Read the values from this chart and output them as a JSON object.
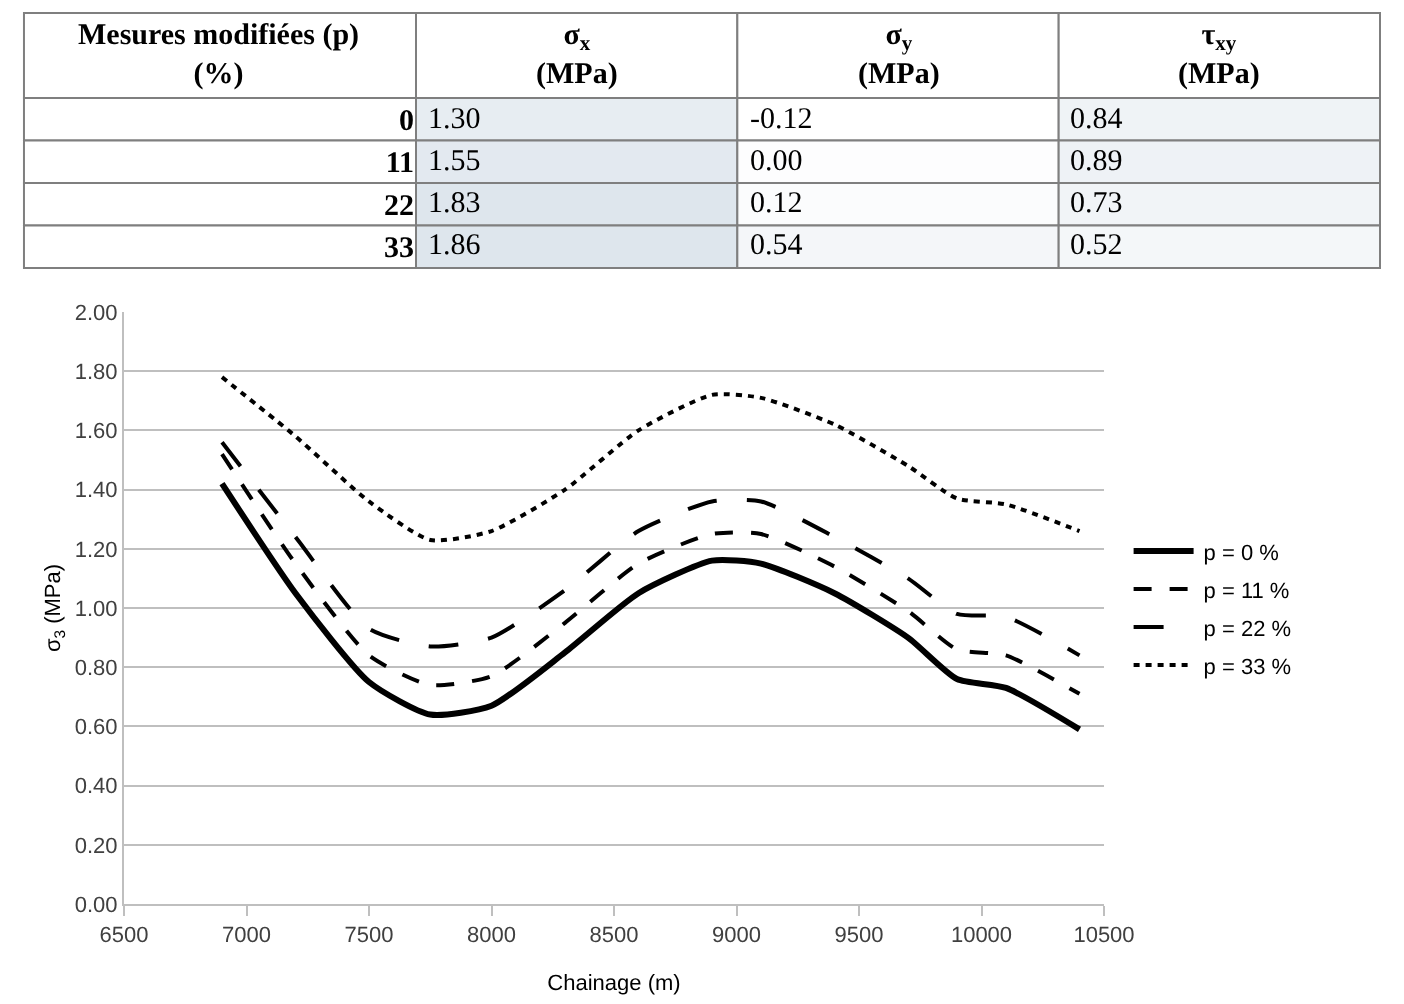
{
  "chart_data": [
    {
      "type": "heatmap",
      "ylabel": "Mesures modifiées (p)\n(%)",
      "categories": [
        "σ$_{x}$\n(MPa)",
        "σ$_{y}$\n(MPa)",
        "τ$_{xy}$\n(MPa)"
      ],
      "y_categories": [
        "0",
        "11",
        "22",
        "33"
      ],
      "cells": [
        [
          1.3,
          -0.12,
          0.84
        ],
        [
          1.55,
          0,
          0.89
        ],
        [
          1.83,
          0.12,
          0.73
        ],
        [
          1.86,
          0.54,
          0.52
        ]
      ],
      "cell_labels": [
        [
          "1.30",
          "-0.12",
          "0.84"
        ],
        [
          "1.55",
          "0.00",
          "0.89"
        ],
        [
          "1.83",
          "0.12",
          "0.73"
        ],
        [
          "1.86",
          "0.54",
          "0.52"
        ]
      ]
    },
    {
      "type": "line",
      "xlabel": "Chainage (m)",
      "ylabel": "σ$_{3}$ (MPa)",
      "x": [
        6900,
        7200,
        7500,
        7750,
        8000,
        8300,
        8600,
        8900,
        9100,
        9400,
        9700,
        9900,
        10100,
        10400
      ],
      "series": [
        {
          "name": "p = 0 %",
          "color": "#000000",
          "line_style": "solid",
          "values": [
            1.42,
            1.05,
            0.75,
            0.64,
            0.67,
            0.85,
            1.05,
            1.16,
            1.15,
            1.05,
            0.9,
            0.76,
            0.73,
            0.59
          ]
        },
        {
          "name": "p = 11 %",
          "color": "#000000",
          "line_style": "dashed",
          "values": [
            1.52,
            1.15,
            0.84,
            0.74,
            0.77,
            0.95,
            1.15,
            1.25,
            1.25,
            1.14,
            0.99,
            0.86,
            0.84,
            0.71
          ]
        },
        {
          "name": "p = 22 %",
          "color": "#000000",
          "line_style": "longdash",
          "values": [
            1.56,
            1.24,
            0.93,
            0.87,
            0.9,
            1.06,
            1.26,
            1.36,
            1.36,
            1.24,
            1.1,
            0.98,
            0.97,
            0.84
          ]
        },
        {
          "name": "p = 33 %",
          "color": "#000000",
          "line_style": "dotted",
          "values": [
            1.78,
            1.58,
            1.36,
            1.23,
            1.26,
            1.4,
            1.6,
            1.72,
            1.71,
            1.62,
            1.48,
            1.37,
            1.35,
            1.26
          ]
        }
      ],
      "xlim": [
        6500,
        10500
      ],
      "xticks": [
        6500,
        7000,
        7500,
        8000,
        8500,
        9000,
        9500,
        10000,
        10500
      ],
      "ylim": [
        0,
        2
      ],
      "yticks": [
        {
          "value": 0,
          "label": "0.00"
        },
        {
          "value": 0.2,
          "label": "0.20"
        },
        {
          "value": 0.4,
          "label": "0.40"
        },
        {
          "value": 0.6,
          "label": "0.60"
        },
        {
          "value": 0.8,
          "label": "0.80"
        },
        {
          "value": 1,
          "label": "1.00"
        },
        {
          "value": 1.2,
          "label": "1.20"
        },
        {
          "value": 1.4,
          "label": "1.40"
        },
        {
          "value": 1.6,
          "label": "1.60"
        },
        {
          "value": 1.8,
          "label": "1.80"
        },
        {
          "value": 2,
          "label": "2.00"
        }
      ],
      "grid": "y",
      "legend": "right"
    }
  ]
}
